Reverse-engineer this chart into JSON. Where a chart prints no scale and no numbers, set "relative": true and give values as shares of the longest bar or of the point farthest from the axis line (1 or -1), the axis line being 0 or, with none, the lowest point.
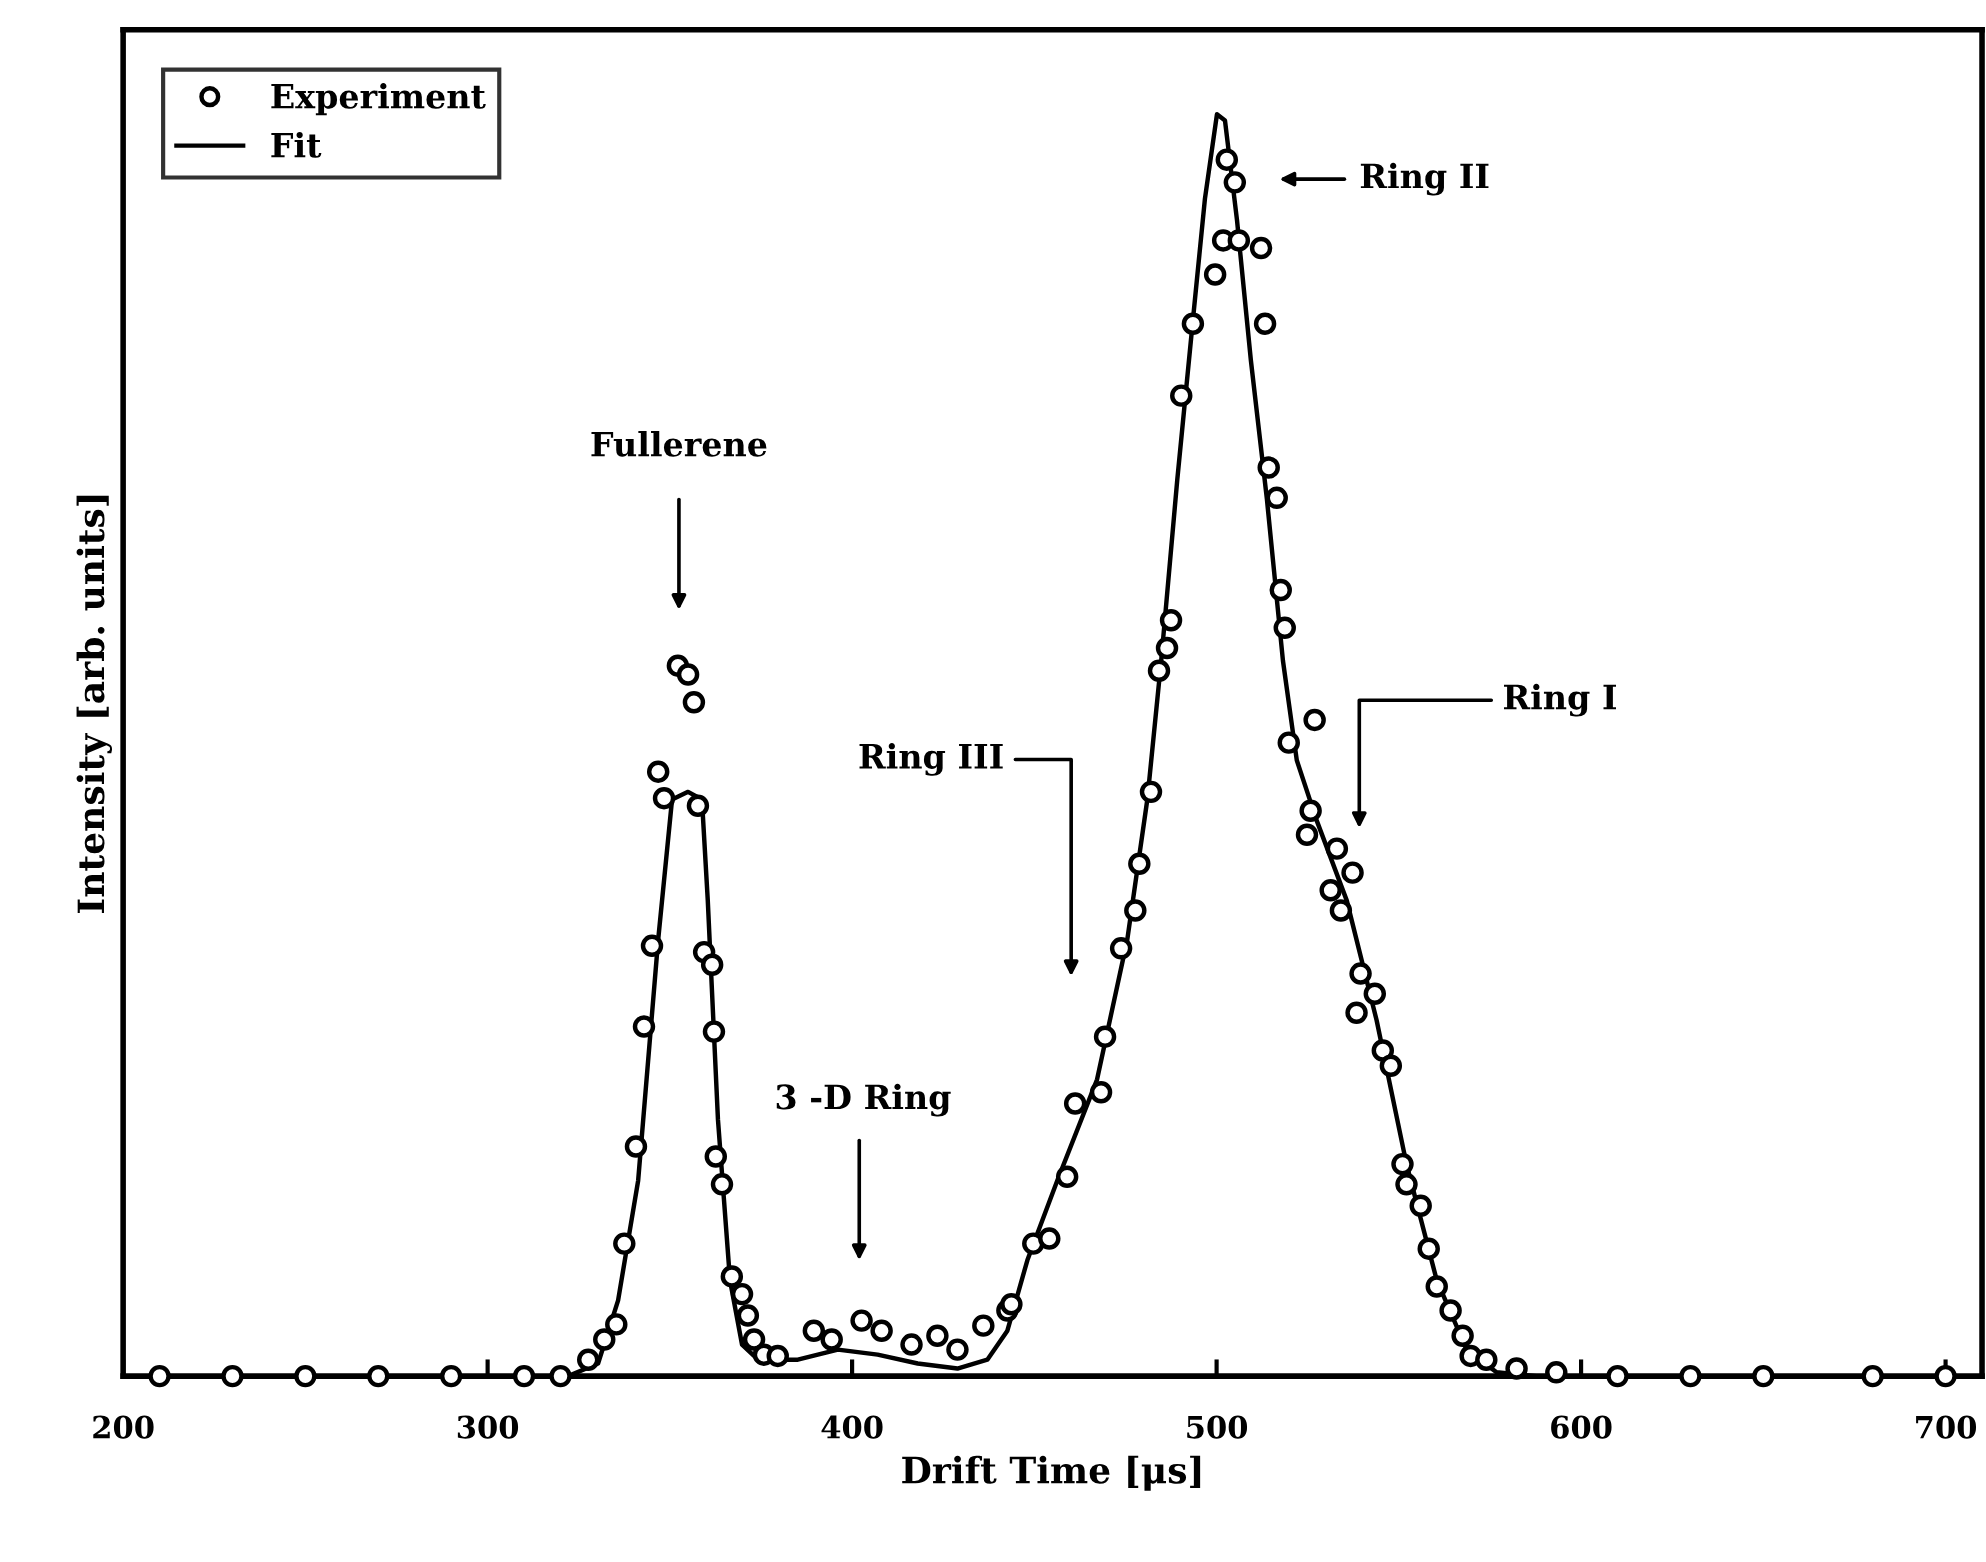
{
  "chart_data": {
    "type": "scatter",
    "relative": true,
    "xlabel": "Drift Time [μs]",
    "ylabel": "Intensity [arb. units]",
    "xlim": [
      200,
      710
    ],
    "xticks": [
      200,
      300,
      400,
      500,
      600,
      700
    ],
    "legend": "top left",
    "grid": false,
    "tick_labels": "x",
    "series": [
      {
        "name": "Experiment",
        "marker": "circle",
        "color": "#000000",
        "x": [
          210,
          230,
          250,
          270,
          290,
          310,
          320,
          327.6,
          332.0,
          335.3,
          337.5,
          340.7,
          342.9,
          345.1,
          346.8,
          348.4,
          352.2,
          355.0,
          356.6,
          357.7,
          359.4,
          361.6,
          362.1,
          362.6,
          364.3,
          367.0,
          369.8,
          371.4,
          373.1,
          375.8,
          379.6,
          389.5,
          394.4,
          402.6,
          408.1,
          416.3,
          423.4,
          428.9,
          436.0,
          442.6,
          443.7,
          449.7,
          454.1,
          459.0,
          461.2,
          468.3,
          469.4,
          473.8,
          477.7,
          478.8,
          482.0,
          484.2,
          486.4,
          487.5,
          490.3,
          493.5,
          499.6,
          501.8,
          502.8,
          505.0,
          506.1,
          512.2,
          513.3,
          514.3,
          516.5,
          517.6,
          518.7,
          519.8,
          526.9,
          525.8,
          524.8,
          533.0,
          537.3,
          531.3,
          534.1,
          539.5,
          543.4,
          538.4,
          545.6,
          547.8,
          551.0,
          552.1,
          556.0,
          558.2,
          560.4,
          564.2,
          567.5,
          569.7,
          574.0,
          582.3,
          593.2,
          610,
          630,
          650,
          680,
          700
        ],
        "values": [
          0,
          0,
          0,
          0,
          0,
          0,
          0,
          0.013,
          0.029,
          0.041,
          0.105,
          0.182,
          0.277,
          0.341,
          0.479,
          0.458,
          0.563,
          0.556,
          0.534,
          0.452,
          0.336,
          0.326,
          0.273,
          0.174,
          0.152,
          0.079,
          0.065,
          0.048,
          0.029,
          0.017,
          0.016,
          0.036,
          0.029,
          0.044,
          0.036,
          0.025,
          0.032,
          0.021,
          0.04,
          0.052,
          0.057,
          0.105,
          0.109,
          0.158,
          0.216,
          0.225,
          0.269,
          0.339,
          0.369,
          0.406,
          0.463,
          0.559,
          0.577,
          0.599,
          0.777,
          0.834,
          0.873,
          0.9,
          0.964,
          0.946,
          0.9,
          0.894,
          0.834,
          0.72,
          0.696,
          0.623,
          0.593,
          0.502,
          0.52,
          0.448,
          0.429,
          0.418,
          0.399,
          0.385,
          0.369,
          0.319,
          0.303,
          0.288,
          0.258,
          0.246,
          0.168,
          0.152,
          0.135,
          0.101,
          0.071,
          0.052,
          0.032,
          0.016,
          0.013,
          0.006,
          0.003,
          0,
          0,
          0,
          0,
          0
        ]
      },
      {
        "name": "Fit",
        "type": "line",
        "line_style": "solid",
        "color": "#000000",
        "x": [
          200,
          322.1,
          330.3,
          335.8,
          341.3,
          346.8,
          350.6,
          355,
          358.8,
          360.4,
          363.2,
          366.5,
          369.8,
          374.2,
          385.1,
          396.1,
          407.0,
          418,
          428.9,
          437.1,
          442.6,
          448.1,
          456.3,
          467.2,
          475.5,
          481,
          484.8,
          489.2,
          493.5,
          496.8,
          500.1,
          502.3,
          505.6,
          509.4,
          513.8,
          518.2,
          522.0,
          527.5,
          535.7,
          543.9,
          552.1,
          560.4,
          568.6,
          576.8,
          587.7,
          710
        ],
        "values": [
          0,
          0,
          0.01,
          0.06,
          0.155,
          0.346,
          0.457,
          0.463,
          0.457,
          0.377,
          0.203,
          0.076,
          0.025,
          0.013,
          0.013,
          0.021,
          0.017,
          0.01,
          0.006,
          0.013,
          0.036,
          0.092,
          0.155,
          0.235,
          0.346,
          0.457,
          0.567,
          0.71,
          0.837,
          0.933,
          1.0,
          0.995,
          0.916,
          0.805,
          0.695,
          0.567,
          0.488,
          0.44,
          0.377,
          0.282,
          0.168,
          0.076,
          0.021,
          0.003,
          0,
          0
        ]
      }
    ],
    "annotations": [
      "Fullerene",
      "3 -D Ring",
      "Ring III",
      "Ring II",
      "Ring I"
    ]
  }
}
